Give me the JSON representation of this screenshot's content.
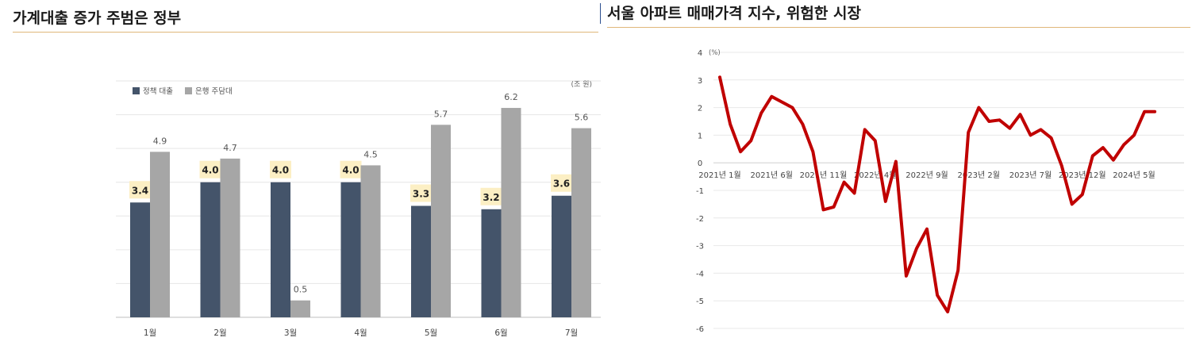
{
  "left_panel": {
    "title": "가계대출 증가 주범은 정부",
    "chart_data": {
      "type": "bar",
      "unit_label": "(조 원)",
      "categories": [
        "1월",
        "2월",
        "3월",
        "4월",
        "5월",
        "6월",
        "7월"
      ],
      "series": [
        {
          "name": "정책 대출",
          "color": "#44546a",
          "values": [
            3.4,
            4.0,
            4.0,
            4.0,
            3.3,
            3.2,
            3.6
          ]
        },
        {
          "name": "은행 주담대",
          "color": "#a6a6a6",
          "values": [
            4.9,
            4.7,
            0.5,
            4.5,
            5.7,
            6.2,
            5.6
          ]
        }
      ],
      "ylim": [
        0,
        7
      ],
      "grid": true,
      "legend": "top-left"
    }
  },
  "right_panel": {
    "title": "서울 아파트 매매가격 지수, 위험한 시장",
    "chart_data": {
      "type": "line",
      "unit_label": "(%)",
      "y_ticks": [
        "4",
        "3",
        "2",
        "1",
        "0",
        "-1",
        "-2",
        "-3",
        "-4",
        "-5",
        "-6"
      ],
      "x_tick_labels": [
        "2021년 1월",
        "2021년 6월",
        "2021년 11월",
        "2022년 4월",
        "2022년 9월",
        "2023년 2월",
        "2023년 7월",
        "2023년 12월",
        "2024년 5월"
      ],
      "ylim": [
        -6,
        4
      ],
      "grid": true,
      "series": [
        {
          "color": "#c00000",
          "x": [
            "2021-01",
            "2021-02",
            "2021-03",
            "2021-04",
            "2021-05",
            "2021-06",
            "2021-07",
            "2021-08",
            "2021-09",
            "2021-10",
            "2021-11",
            "2021-12",
            "2022-01",
            "2022-02",
            "2022-03",
            "2022-04",
            "2022-05",
            "2022-06",
            "2022-07",
            "2022-08",
            "2022-09",
            "2022-10",
            "2022-11",
            "2022-12",
            "2023-01",
            "2023-02",
            "2023-03",
            "2023-04",
            "2023-05",
            "2023-06",
            "2023-07",
            "2023-08",
            "2023-09",
            "2023-10",
            "2023-11",
            "2023-12",
            "2024-01",
            "2024-02",
            "2024-03",
            "2024-04",
            "2024-05",
            "2024-06",
            "2024-07"
          ],
          "values": [
            3.1,
            1.4,
            0.4,
            0.8,
            1.8,
            2.4,
            2.2,
            2.0,
            1.4,
            0.4,
            -1.7,
            -1.6,
            -0.7,
            -1.1,
            1.2,
            0.8,
            -1.4,
            0.05,
            -4.1,
            -3.1,
            -2.4,
            -4.8,
            -5.4,
            -3.9,
            1.1,
            2.0,
            1.5,
            1.55,
            1.25,
            1.75,
            1.0,
            1.2,
            0.9,
            -0.1,
            -1.5,
            -1.15,
            0.25,
            0.55,
            0.1,
            0.65,
            1.0,
            1.85,
            1.85
          ]
        }
      ]
    }
  }
}
